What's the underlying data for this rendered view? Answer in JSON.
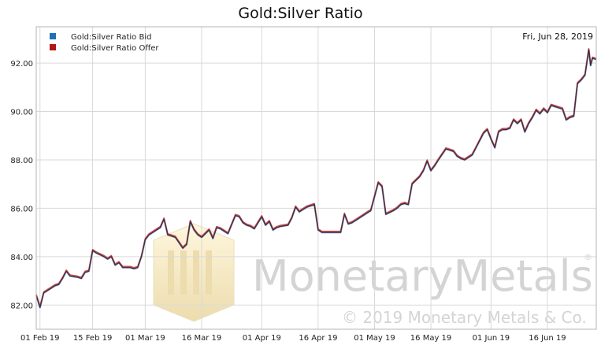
{
  "chart_data": {
    "type": "line",
    "title": "Gold:Silver Ratio",
    "date_label": "Fri, Jun 28, 2019",
    "xlabel": "",
    "ylabel": "",
    "ylim": [
      81,
      93.5
    ],
    "xlim": [
      "2019-01-31",
      "2019-06-29"
    ],
    "y_ticks": [
      "82.00",
      "84.00",
      "86.00",
      "88.00",
      "90.00",
      "92.00"
    ],
    "x_ticks": [
      {
        "date": "2019-02-01",
        "label": "01 Feb 19"
      },
      {
        "date": "2019-02-15",
        "label": "15 Feb 19"
      },
      {
        "date": "2019-03-01",
        "label": "01 Mar 19"
      },
      {
        "date": "2019-03-16",
        "label": "16 Mar 19"
      },
      {
        "date": "2019-04-01",
        "label": "01 Apr 19"
      },
      {
        "date": "2019-04-16",
        "label": "16 Apr 19"
      },
      {
        "date": "2019-05-01",
        "label": "01 May 19"
      },
      {
        "date": "2019-05-16",
        "label": "16 May 19"
      },
      {
        "date": "2019-06-01",
        "label": "01 Jun 19"
      },
      {
        "date": "2019-06-16",
        "label": "16 Jun 19"
      }
    ],
    "grid": true,
    "legend_position": "top-left",
    "colors": {
      "bid": "#4a76b8",
      "offer": "#c03030",
      "grid": "#d9d9d9"
    },
    "watermark": {
      "name": "MonetaryMetals",
      "registered": "®",
      "copyright": "© 2019 Monetary Metals & Co."
    },
    "series": [
      {
        "name": "Gold:Silver Ratio Bid",
        "color": "#1f6fb8",
        "points": [
          [
            "2019-01-31",
            82.4
          ],
          [
            "2019-02-01",
            81.9
          ],
          [
            "2019-02-02",
            82.5
          ],
          [
            "2019-02-04",
            82.7
          ],
          [
            "2019-02-05",
            82.8
          ],
          [
            "2019-02-06",
            82.85
          ],
          [
            "2019-02-07",
            83.1
          ],
          [
            "2019-02-08",
            83.4
          ],
          [
            "2019-02-09",
            83.2
          ],
          [
            "2019-02-11",
            83.15
          ],
          [
            "2019-02-12",
            83.1
          ],
          [
            "2019-02-13",
            83.35
          ],
          [
            "2019-02-14",
            83.4
          ],
          [
            "2019-02-15",
            84.25
          ],
          [
            "2019-02-16",
            84.15
          ],
          [
            "2019-02-18",
            84.0
          ],
          [
            "2019-02-19",
            83.9
          ],
          [
            "2019-02-20",
            84.0
          ],
          [
            "2019-02-21",
            83.65
          ],
          [
            "2019-02-22",
            83.75
          ],
          [
            "2019-02-23",
            83.55
          ],
          [
            "2019-02-25",
            83.55
          ],
          [
            "2019-02-26",
            83.5
          ],
          [
            "2019-02-27",
            83.55
          ],
          [
            "2019-02-28",
            84.0
          ],
          [
            "2019-03-01",
            84.7
          ],
          [
            "2019-03-02",
            84.9
          ],
          [
            "2019-03-04",
            85.1
          ],
          [
            "2019-03-05",
            85.2
          ],
          [
            "2019-03-06",
            85.55
          ],
          [
            "2019-03-07",
            84.9
          ],
          [
            "2019-03-08",
            84.85
          ],
          [
            "2019-03-09",
            84.8
          ],
          [
            "2019-03-11",
            84.35
          ],
          [
            "2019-03-12",
            84.5
          ],
          [
            "2019-03-13",
            85.45
          ],
          [
            "2019-03-14",
            85.1
          ],
          [
            "2019-03-15",
            84.9
          ],
          [
            "2019-03-16",
            84.8
          ],
          [
            "2019-03-18",
            85.1
          ],
          [
            "2019-03-19",
            84.75
          ],
          [
            "2019-03-20",
            85.2
          ],
          [
            "2019-03-21",
            85.15
          ],
          [
            "2019-03-22",
            85.05
          ],
          [
            "2019-03-23",
            84.95
          ],
          [
            "2019-03-25",
            85.7
          ],
          [
            "2019-03-26",
            85.65
          ],
          [
            "2019-03-27",
            85.4
          ],
          [
            "2019-03-28",
            85.3
          ],
          [
            "2019-03-29",
            85.25
          ],
          [
            "2019-03-30",
            85.15
          ],
          [
            "2019-04-01",
            85.65
          ],
          [
            "2019-04-02",
            85.3
          ],
          [
            "2019-04-03",
            85.45
          ],
          [
            "2019-04-04",
            85.1
          ],
          [
            "2019-04-05",
            85.2
          ],
          [
            "2019-04-06",
            85.25
          ],
          [
            "2019-04-08",
            85.3
          ],
          [
            "2019-04-09",
            85.6
          ],
          [
            "2019-04-10",
            86.05
          ],
          [
            "2019-04-11",
            85.85
          ],
          [
            "2019-04-12",
            85.95
          ],
          [
            "2019-04-13",
            86.05
          ],
          [
            "2019-04-15",
            86.15
          ],
          [
            "2019-04-16",
            85.1
          ],
          [
            "2019-04-17",
            85.0
          ],
          [
            "2019-04-18",
            85.0
          ],
          [
            "2019-04-20",
            85.0
          ],
          [
            "2019-04-22",
            85.0
          ],
          [
            "2019-04-23",
            85.75
          ],
          [
            "2019-04-24",
            85.35
          ],
          [
            "2019-04-25",
            85.4
          ],
          [
            "2019-04-26",
            85.5
          ],
          [
            "2019-04-27",
            85.6
          ],
          [
            "2019-04-29",
            85.8
          ],
          [
            "2019-04-30",
            85.9
          ],
          [
            "2019-05-02",
            87.05
          ],
          [
            "2019-05-03",
            86.9
          ],
          [
            "2019-05-04",
            85.75
          ],
          [
            "2019-05-06",
            85.9
          ],
          [
            "2019-05-07",
            86.0
          ],
          [
            "2019-05-08",
            86.15
          ],
          [
            "2019-05-09",
            86.2
          ],
          [
            "2019-05-10",
            86.15
          ],
          [
            "2019-05-11",
            87.0
          ],
          [
            "2019-05-13",
            87.3
          ],
          [
            "2019-05-14",
            87.55
          ],
          [
            "2019-05-15",
            87.95
          ],
          [
            "2019-05-16",
            87.55
          ],
          [
            "2019-05-17",
            87.75
          ],
          [
            "2019-05-18",
            88.0
          ],
          [
            "2019-05-20",
            88.45
          ],
          [
            "2019-05-21",
            88.4
          ],
          [
            "2019-05-22",
            88.35
          ],
          [
            "2019-05-23",
            88.15
          ],
          [
            "2019-05-24",
            88.05
          ],
          [
            "2019-05-25",
            88.0
          ],
          [
            "2019-05-27",
            88.2
          ],
          [
            "2019-05-28",
            88.5
          ],
          [
            "2019-05-30",
            89.1
          ],
          [
            "2019-05-31",
            89.25
          ],
          [
            "2019-06-01",
            88.85
          ],
          [
            "2019-06-02",
            88.5
          ],
          [
            "2019-06-03",
            89.15
          ],
          [
            "2019-06-04",
            89.25
          ],
          [
            "2019-06-05",
            89.25
          ],
          [
            "2019-06-06",
            89.3
          ],
          [
            "2019-06-07",
            89.65
          ],
          [
            "2019-06-08",
            89.5
          ],
          [
            "2019-06-09",
            89.65
          ],
          [
            "2019-06-10",
            89.15
          ],
          [
            "2019-06-11",
            89.5
          ],
          [
            "2019-06-12",
            89.75
          ],
          [
            "2019-06-13",
            90.05
          ],
          [
            "2019-06-14",
            89.9
          ],
          [
            "2019-06-15",
            90.1
          ],
          [
            "2019-06-16",
            89.95
          ],
          [
            "2019-06-17",
            90.25
          ],
          [
            "2019-06-18",
            90.2
          ],
          [
            "2019-06-19",
            90.15
          ],
          [
            "2019-06-20",
            90.1
          ],
          [
            "2019-06-21",
            89.65
          ],
          [
            "2019-06-22",
            89.75
          ],
          [
            "2019-06-23",
            89.8
          ],
          [
            "2019-06-24",
            91.15
          ],
          [
            "2019-06-25",
            91.3
          ],
          [
            "2019-06-26",
            91.5
          ],
          [
            "2019-06-27",
            92.55
          ],
          [
            "2019-06-27.5",
            91.9
          ],
          [
            "2019-06-28",
            92.2
          ],
          [
            "2019-06-29",
            92.15
          ]
        ]
      },
      {
        "name": "Gold:Silver Ratio Offer",
        "color": "#b01818"
      }
    ]
  }
}
